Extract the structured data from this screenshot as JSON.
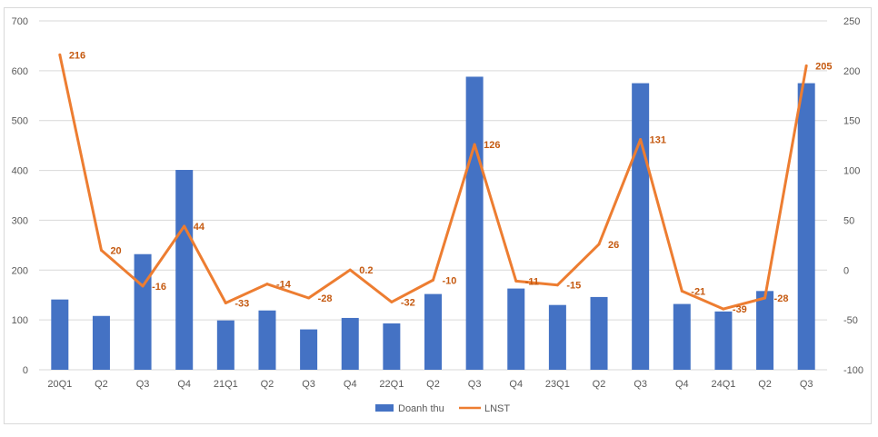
{
  "chart_data": {
    "type": "bar+line",
    "categories": [
      "20Q1",
      "Q2",
      "Q3",
      "Q4",
      "21Q1",
      "Q2",
      "Q3",
      "Q4",
      "22Q1",
      "Q2",
      "Q3",
      "Q4",
      "23Q1",
      "Q2",
      "Q3",
      "Q4",
      "24Q1",
      "Q2",
      "Q3"
    ],
    "series": [
      {
        "name": "Doanh thu",
        "type": "bar",
        "axis": "left",
        "color": "#4472C4",
        "values": [
          141,
          108,
          232,
          401,
          99,
          119,
          81,
          104,
          93,
          152,
          588,
          163,
          130,
          146,
          575,
          132,
          117,
          158,
          575
        ]
      },
      {
        "name": "LNST",
        "type": "line",
        "axis": "right",
        "color": "#ED7D31",
        "values": [
          216,
          20,
          -16,
          44,
          -33,
          -14,
          -28,
          0.2,
          -32,
          -10,
          126,
          -11,
          -15,
          26,
          131,
          -21,
          -39,
          -28,
          205
        ],
        "labels": [
          "216",
          "20",
          "-16",
          "44",
          "-33",
          "-14",
          "-28",
          "0.2",
          "-32",
          "-10",
          "126",
          "-11",
          "-15",
          "26",
          "131",
          "-21",
          "-39",
          "-28",
          "205"
        ],
        "label_color": "#C55A11"
      }
    ],
    "y_left": {
      "min": 0,
      "max": 700,
      "ticks": [
        0,
        100,
        200,
        300,
        400,
        500,
        600,
        700
      ]
    },
    "y_right": {
      "min": -100,
      "max": 250,
      "ticks": [
        -100,
        -50,
        0,
        50,
        100,
        150,
        200,
        250
      ]
    },
    "grid": true,
    "legend": "bottom-center",
    "title": "",
    "xlabel": "",
    "ylabel": ""
  },
  "colors": {
    "grid": "#d9d9d9",
    "axis_text": "#595959"
  }
}
